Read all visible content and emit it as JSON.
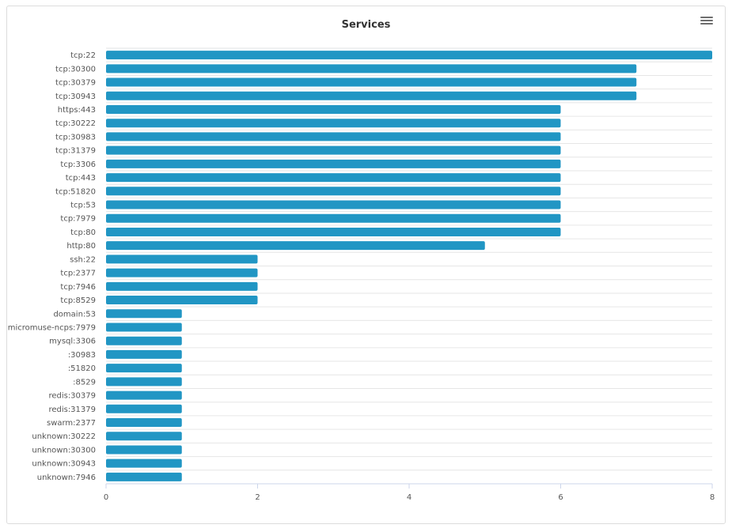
{
  "chart_data": {
    "type": "bar",
    "orientation": "horizontal",
    "title": "Services",
    "xlabel": "",
    "ylabel": "",
    "xlim": [
      0,
      8
    ],
    "x_ticks": [
      "0",
      "2",
      "4",
      "6",
      "8"
    ],
    "grid": true,
    "bar_color": "#2196c4",
    "categories": [
      "tcp:22",
      "tcp:30300",
      "tcp:30379",
      "tcp:30943",
      "https:443",
      "tcp:30222",
      "tcp:30983",
      "tcp:31379",
      "tcp:3306",
      "tcp:443",
      "tcp:51820",
      "tcp:53",
      "tcp:7979",
      "tcp:80",
      "http:80",
      "ssh:22",
      "tcp:2377",
      "tcp:7946",
      "tcp:8529",
      "domain:53",
      "micromuse-ncps:7979",
      "mysql:3306",
      ":30983",
      ":51820",
      ":8529",
      "redis:30379",
      "redis:31379",
      "swarm:2377",
      "unknown:30222",
      "unknown:30300",
      "unknown:30943",
      "unknown:7946"
    ],
    "values": [
      8,
      7,
      7,
      7,
      6,
      6,
      6,
      6,
      6,
      6,
      6,
      6,
      6,
      6,
      5,
      2,
      2,
      2,
      2,
      1,
      1,
      1,
      1,
      1,
      1,
      1,
      1,
      1,
      1,
      1,
      1,
      1
    ]
  }
}
